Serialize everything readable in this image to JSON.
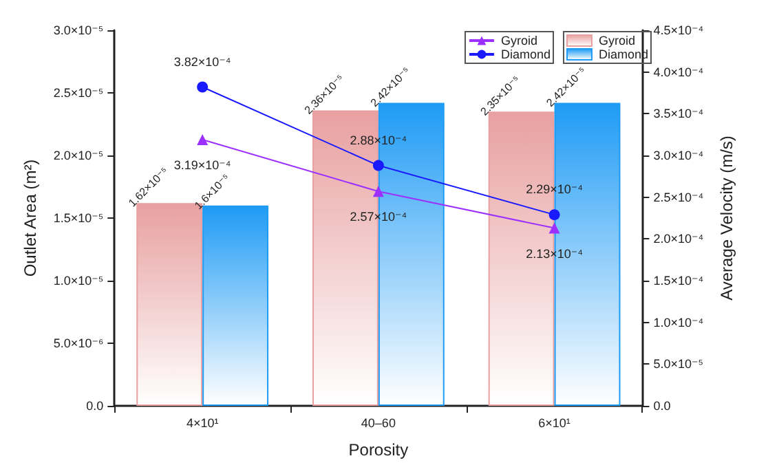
{
  "chart_data": {
    "type": "bar",
    "xlabel": "Porosity",
    "ylabel": "Outlet Area (m²)",
    "y2label": "Average Velocity (m/s)",
    "categories": [
      "4×10¹",
      "40–60",
      "6×10¹"
    ],
    "series": [
      {
        "name": "Gyroid",
        "color": "#e8a0a0",
        "values": [
          1.62e-05,
          2.36e-05,
          2.35e-05
        ],
        "value_labels": [
          "1.62×10⁻⁵",
          "2.36×10⁻⁵",
          "2.35×10⁻⁵"
        ]
      },
      {
        "name": "Diamond",
        "color": "#1e9bf5",
        "values": [
          1.6e-05,
          2.42e-05,
          2.42e-05
        ],
        "value_labels": [
          "1.6×10⁻⁵",
          "2.42×10⁻⁵",
          "2.42×10⁻⁵"
        ]
      },
      {
        "name": "Gyroid",
        "type": "line",
        "axis": "y2",
        "color": "#9b30ff",
        "marker": "triangle",
        "values": [
          0.000319,
          0.000257,
          0.000213
        ],
        "value_labels": [
          "3.19×10⁻⁴",
          "2.57×10⁻⁴",
          "2.13×10⁻⁴"
        ]
      },
      {
        "name": "Diamond",
        "type": "line",
        "axis": "y2",
        "color": "#1a1aff",
        "marker": "circle",
        "values": [
          0.000382,
          0.000288,
          0.000229
        ],
        "value_labels": [
          "3.82×10⁻⁴",
          "2.88×10⁻⁴",
          "2.29×10⁻⁴"
        ]
      }
    ],
    "ylim": [
      0,
      3e-05
    ],
    "yticks": [
      {
        "value": 0,
        "label": "0.0"
      },
      {
        "value": 5e-06,
        "label": "5.0×10⁻⁶"
      },
      {
        "value": 1e-05,
        "label": "1.0×10⁻⁵"
      },
      {
        "value": 1.5e-05,
        "label": "1.5×10⁻⁵"
      },
      {
        "value": 2e-05,
        "label": "2.0×10⁻⁵"
      },
      {
        "value": 2.5e-05,
        "label": "2.5×10⁻⁵"
      },
      {
        "value": 3e-05,
        "label": "3.0×10⁻⁵"
      }
    ],
    "y2lim": [
      0,
      0.00045
    ],
    "y2ticks": [
      {
        "value": 0,
        "label": "0.0"
      },
      {
        "value": 5e-05,
        "label": "5.0×10⁻⁵"
      },
      {
        "value": 0.0001,
        "label": "1.0×10⁻⁴"
      },
      {
        "value": 0.00015,
        "label": "1.5×10⁻⁴"
      },
      {
        "value": 0.0002,
        "label": "2.0×10⁻⁴"
      },
      {
        "value": 0.00025,
        "label": "2.5×10⁻⁴"
      },
      {
        "value": 0.0003,
        "label": "3.0×10⁻⁴"
      },
      {
        "value": 0.00035,
        "label": "3.5×10⁻⁴"
      },
      {
        "value": 0.0004,
        "label": "4.0×10⁻⁴"
      },
      {
        "value": 0.00045,
        "label": "4.5×10⁻⁴"
      }
    ],
    "grid": false,
    "legend": "top right"
  }
}
